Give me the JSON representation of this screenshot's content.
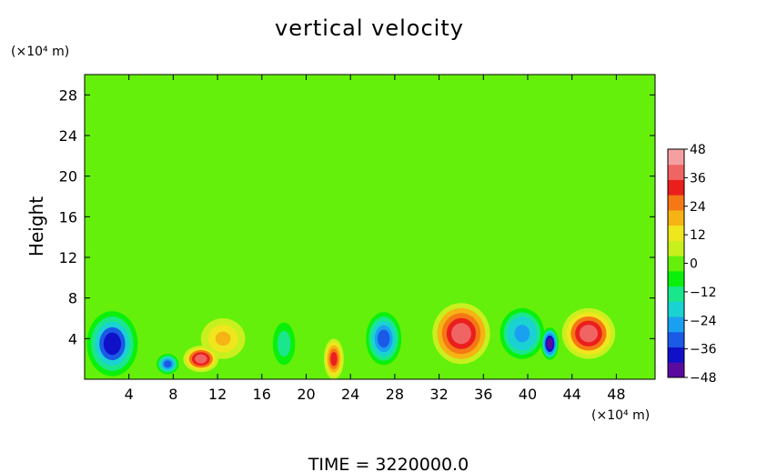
{
  "chart_data": {
    "type": "heatmap",
    "title": "vertical velocity",
    "ylabel": "Height",
    "y_unit": "(×10⁴ m)",
    "x_unit": "(×10⁴ m)",
    "xlim": [
      0,
      51.5
    ],
    "ylim": [
      0,
      30
    ],
    "x_ticks": [
      4,
      8,
      12,
      16,
      20,
      24,
      28,
      32,
      36,
      40,
      44,
      48
    ],
    "y_ticks": [
      4,
      8,
      12,
      16,
      20,
      24,
      28
    ],
    "colorbar": {
      "ticks": [
        48,
        36,
        24,
        12,
        0,
        -12,
        -24,
        -36,
        -48
      ],
      "range": [
        -48,
        48
      ],
      "colors": [
        "#5a0a9e",
        "#1010c8",
        "#1a5ae6",
        "#1aa0f0",
        "#1ad2d2",
        "#1ae68c",
        "#0af00a",
        "#64f00a",
        "#c8f01e",
        "#f0e61e",
        "#f5b414",
        "#f57814",
        "#eb1e1e",
        "#f06464",
        "#f5a0a0"
      ]
    },
    "grid": false,
    "features": [
      {
        "x": 2.5,
        "y": 3.5,
        "sx": 2.3,
        "sy": 3.2,
        "value": -36
      },
      {
        "x": 7.5,
        "y": 1.5,
        "sx": 1.0,
        "sy": 1.0,
        "value": -30
      },
      {
        "x": 10.5,
        "y": 2.0,
        "sx": 1.6,
        "sy": 1.3,
        "value": 38
      },
      {
        "x": 12.5,
        "y": 4.0,
        "sx": 2.0,
        "sy": 2.0,
        "value": 18
      },
      {
        "x": 18.0,
        "y": 3.5,
        "sx": 1.2,
        "sy": 2.5,
        "value": -14
      },
      {
        "x": 22.5,
        "y": 2.0,
        "sx": 0.9,
        "sy": 2.0,
        "value": 30
      },
      {
        "x": 27.0,
        "y": 4.0,
        "sx": 1.6,
        "sy": 2.6,
        "value": -34
      },
      {
        "x": 34.0,
        "y": 4.5,
        "sx": 2.6,
        "sy": 3.0,
        "value": 40
      },
      {
        "x": 39.5,
        "y": 4.5,
        "sx": 2.0,
        "sy": 2.5,
        "value": -28
      },
      {
        "x": 42.0,
        "y": 3.5,
        "sx": 0.8,
        "sy": 1.6,
        "value": -46
      },
      {
        "x": 45.5,
        "y": 4.5,
        "sx": 2.4,
        "sy": 2.5,
        "value": 38
      }
    ]
  },
  "footer": {
    "time_label": "TIME  =  3220000.0"
  }
}
